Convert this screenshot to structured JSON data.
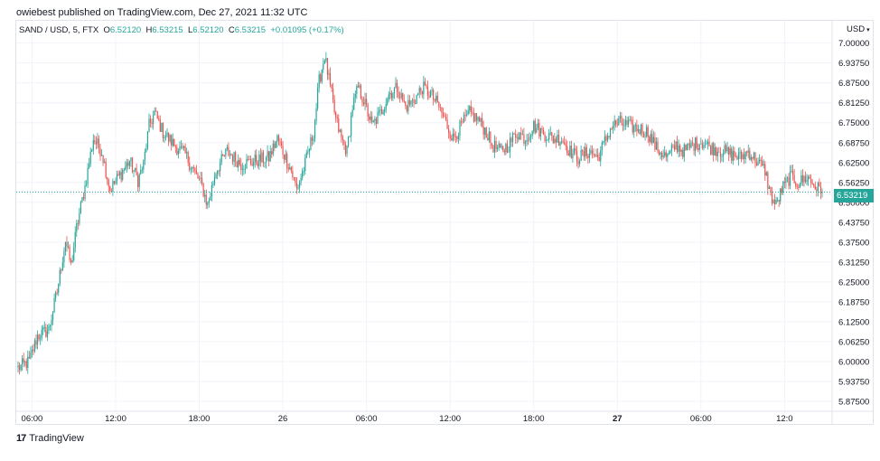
{
  "header": {
    "published": "owiebest published on TradingView.com, Dec 27, 2021 11:32 UTC"
  },
  "symbol_bar": {
    "symbol": "SAND / USD, 5, FTX",
    "o_label": "O",
    "o_value": "6.52120",
    "h_label": "H",
    "h_value": "6.53215",
    "l_label": "L",
    "l_value": "6.52120",
    "c_label": "C",
    "c_value": "6.53215",
    "change": "+0.01095 (+0.17%)"
  },
  "price_axis": {
    "currency": "USD",
    "current_price_label": "6.53219",
    "current_price": 6.53219
  },
  "footer": {
    "brand": "TradingView",
    "logo_text": "17"
  },
  "colors": {
    "up": "#26a69a",
    "down": "#ef5350",
    "grid": "#f0f3fa",
    "axis_text": "#131722",
    "price_line": "#26a69a"
  },
  "chart_data": {
    "type": "candlestick",
    "title": "SAND / USD, 5, FTX",
    "ylim": [
      5.84375,
      7.07
    ],
    "yticks": [
      "7.00000",
      "6.93750",
      "6.87500",
      "6.81250",
      "6.75000",
      "6.68750",
      "6.62500",
      "6.56250",
      "6.50000",
      "6.43750",
      "6.37500",
      "6.31250",
      "6.25000",
      "6.18750",
      "6.12500",
      "6.06250",
      "6.00000",
      "5.93750",
      "5.87500"
    ],
    "ytick_values": [
      7.0,
      6.9375,
      6.875,
      6.8125,
      6.75,
      6.6875,
      6.625,
      6.5625,
      6.5,
      6.4375,
      6.375,
      6.3125,
      6.25,
      6.1875,
      6.125,
      6.0625,
      6.0,
      5.9375,
      5.875
    ],
    "xticks": [
      "06:00",
      "12:00",
      "18:00",
      "26",
      "06:00",
      "12:00",
      "18:00",
      "27",
      "06:00",
      "12:0"
    ],
    "xtick_index": [
      10,
      70,
      130,
      190,
      250,
      310,
      370,
      430,
      490,
      550
    ],
    "xtick_bold": [
      false,
      false,
      false,
      false,
      false,
      false,
      false,
      true,
      false,
      false
    ],
    "n_bars": 578,
    "anchors": [
      [
        0,
        5.98
      ],
      [
        8,
        6.0
      ],
      [
        14,
        6.08
      ],
      [
        22,
        6.1
      ],
      [
        28,
        6.22
      ],
      [
        34,
        6.38
      ],
      [
        38,
        6.3
      ],
      [
        42,
        6.42
      ],
      [
        48,
        6.55
      ],
      [
        54,
        6.7
      ],
      [
        60,
        6.66
      ],
      [
        66,
        6.54
      ],
      [
        72,
        6.58
      ],
      [
        80,
        6.63
      ],
      [
        86,
        6.57
      ],
      [
        90,
        6.62
      ],
      [
        94,
        6.74
      ],
      [
        98,
        6.78
      ],
      [
        104,
        6.72
      ],
      [
        112,
        6.68
      ],
      [
        120,
        6.65
      ],
      [
        126,
        6.6
      ],
      [
        132,
        6.55
      ],
      [
        136,
        6.49
      ],
      [
        142,
        6.6
      ],
      [
        150,
        6.66
      ],
      [
        160,
        6.62
      ],
      [
        170,
        6.63
      ],
      [
        180,
        6.64
      ],
      [
        186,
        6.7
      ],
      [
        190,
        6.66
      ],
      [
        196,
        6.6
      ],
      [
        200,
        6.54
      ],
      [
        206,
        6.62
      ],
      [
        212,
        6.72
      ],
      [
        216,
        6.88
      ],
      [
        220,
        6.96
      ],
      [
        224,
        6.86
      ],
      [
        228,
        6.76
      ],
      [
        232,
        6.7
      ],
      [
        236,
        6.66
      ],
      [
        240,
        6.8
      ],
      [
        244,
        6.86
      ],
      [
        248,
        6.82
      ],
      [
        254,
        6.74
      ],
      [
        260,
        6.78
      ],
      [
        266,
        6.84
      ],
      [
        272,
        6.86
      ],
      [
        278,
        6.8
      ],
      [
        284,
        6.82
      ],
      [
        290,
        6.86
      ],
      [
        296,
        6.84
      ],
      [
        302,
        6.8
      ],
      [
        308,
        6.74
      ],
      [
        312,
        6.7
      ],
      [
        318,
        6.74
      ],
      [
        324,
        6.78
      ],
      [
        330,
        6.76
      ],
      [
        336,
        6.72
      ],
      [
        340,
        6.68
      ],
      [
        346,
        6.66
      ],
      [
        352,
        6.68
      ],
      [
        358,
        6.72
      ],
      [
        364,
        6.7
      ],
      [
        370,
        6.74
      ],
      [
        376,
        6.72
      ],
      [
        384,
        6.7
      ],
      [
        390,
        6.7
      ],
      [
        396,
        6.66
      ],
      [
        402,
        6.64
      ],
      [
        410,
        6.66
      ],
      [
        416,
        6.64
      ],
      [
        420,
        6.68
      ],
      [
        426,
        6.74
      ],
      [
        432,
        6.75
      ],
      [
        438,
        6.74
      ],
      [
        446,
        6.73
      ],
      [
        452,
        6.72
      ],
      [
        458,
        6.67
      ],
      [
        466,
        6.64
      ],
      [
        472,
        6.68
      ],
      [
        478,
        6.66
      ],
      [
        484,
        6.68
      ],
      [
        490,
        6.69
      ],
      [
        498,
        6.67
      ],
      [
        506,
        6.66
      ],
      [
        512,
        6.65
      ],
      [
        518,
        6.64
      ],
      [
        524,
        6.66
      ],
      [
        530,
        6.63
      ],
      [
        536,
        6.6
      ],
      [
        540,
        6.52
      ],
      [
        544,
        6.49
      ],
      [
        548,
        6.54
      ],
      [
        554,
        6.58
      ],
      [
        560,
        6.56
      ],
      [
        566,
        6.58
      ],
      [
        572,
        6.55
      ],
      [
        577,
        6.5322
      ]
    ]
  }
}
